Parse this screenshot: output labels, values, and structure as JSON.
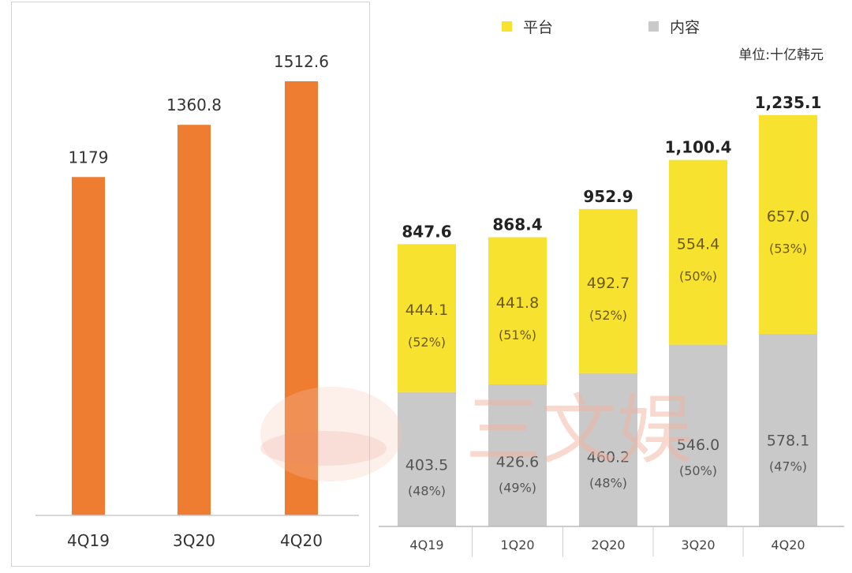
{
  "chart_data": [
    {
      "type": "bar",
      "categories": [
        "4Q19",
        "3Q20",
        "4Q20"
      ],
      "values": [
        1179,
        1360.8,
        1512.6
      ],
      "value_labels": [
        "1179",
        "1360.8",
        "1512.6"
      ],
      "title": "",
      "xlabel": "",
      "ylabel": "",
      "ylim": [
        0,
        1650
      ],
      "colors": {
        "bar": "#ee7d31",
        "axis": "#cccccc",
        "text": "#333333"
      }
    },
    {
      "type": "bar",
      "stacked": true,
      "categories": [
        "4Q19",
        "1Q20",
        "2Q20",
        "3Q20",
        "4Q20"
      ],
      "series": [
        {
          "name": "内容",
          "color": "#c9c9c9",
          "values": [
            403.5,
            426.6,
            460.2,
            546.0,
            578.1
          ],
          "value_labels": [
            "403.5",
            "426.6",
            "460.2",
            "546.0",
            "578.1"
          ],
          "share_labels": [
            "(48%)",
            "(49%)",
            "(48%)",
            "(50%)",
            "(47%)"
          ]
        },
        {
          "name": "平台",
          "color": "#f7e22f",
          "values": [
            444.1,
            441.8,
            492.7,
            554.4,
            657.0
          ],
          "value_labels": [
            "444.1",
            "441.8",
            "492.7",
            "554.4",
            "657.0"
          ],
          "share_labels": [
            "(52%)",
            "(51%)",
            "(52%)",
            "(50%)",
            "(53%)"
          ]
        }
      ],
      "totals": [
        847.6,
        868.4,
        952.9,
        1100.4,
        1235.1
      ],
      "total_labels": [
        "847.6",
        "868.4",
        "952.9",
        "1,100.4",
        "1,235.1"
      ],
      "legend": {
        "position": "top",
        "items": [
          "平台",
          "内容"
        ]
      },
      "unit_label": "单位:十亿韩元",
      "ylim": [
        0,
        1350
      ]
    }
  ],
  "watermark": {
    "text": "三文娱"
  }
}
